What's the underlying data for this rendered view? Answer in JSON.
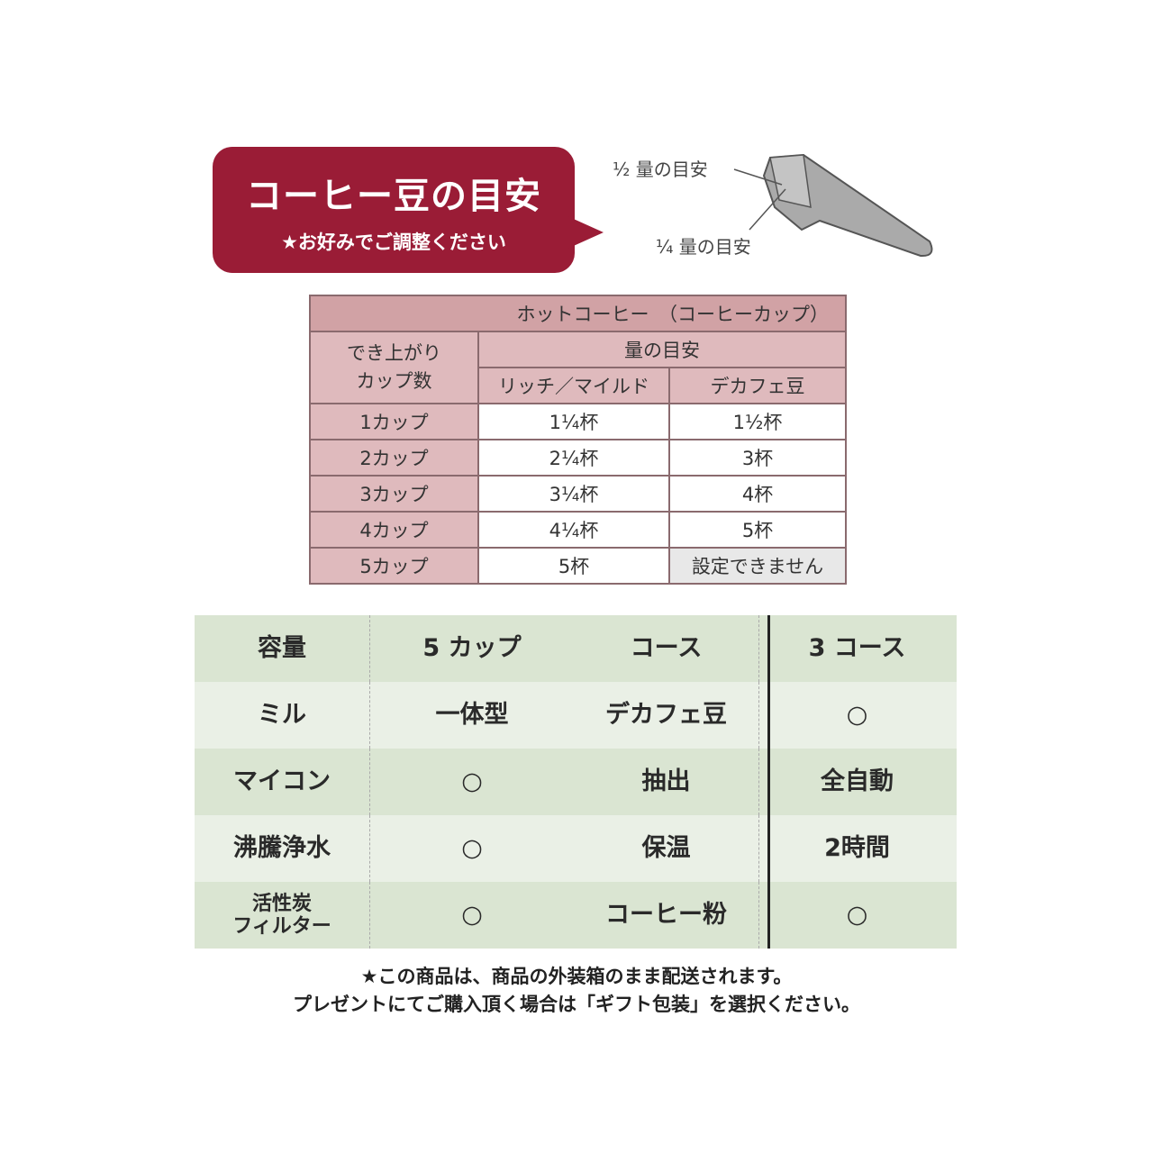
{
  "bubble": {
    "title": "コーヒー豆の目安",
    "subtitle": "★お好みでご調整ください",
    "color": "#9a1c36"
  },
  "scoop": {
    "half_label": "½ 量の目安",
    "quarter_label": "¼ 量の目安"
  },
  "bean_table": {
    "title": "ホットコーヒー　（コーヒーカップ）",
    "row_header": "でき上がり\nカップ数",
    "group_header": "量の目安",
    "columns": [
      "リッチ／マイルド",
      "デカフェ豆"
    ],
    "rows": [
      {
        "cups": "1カップ",
        "rich_mild": "1¼杯",
        "decaf": "1½杯"
      },
      {
        "cups": "2カップ",
        "rich_mild": "2¼杯",
        "decaf": "3杯"
      },
      {
        "cups": "3カップ",
        "rich_mild": "3¼杯",
        "decaf": "4杯"
      },
      {
        "cups": "4カップ",
        "rich_mild": "4¼杯",
        "decaf": "5杯"
      },
      {
        "cups": "5カップ",
        "rich_mild": "5杯",
        "decaf": "設定できません"
      }
    ]
  },
  "spec_table": {
    "rows": [
      {
        "k1": "容量",
        "v1": "5 カップ",
        "k2": "コース",
        "v2": "3 コース"
      },
      {
        "k1": "ミル",
        "v1": "一体型",
        "k2": "デカフェ豆",
        "v2": "○"
      },
      {
        "k1": "マイコン",
        "v1": "○",
        "k2": "抽出",
        "v2": "全自動"
      },
      {
        "k1": "沸騰浄水",
        "v1": "○",
        "k2": "保温",
        "v2": "2時間"
      },
      {
        "k1": "活性炭\nフィルター",
        "v1": "○",
        "k2": "コーヒー粉",
        "v2": "○"
      }
    ]
  },
  "footer": {
    "line1": "★この商品は、商品の外装箱のまま配送されます。",
    "line2": "プレゼントにてご購入頂く場合は「ギフト包装」を選択ください。"
  }
}
